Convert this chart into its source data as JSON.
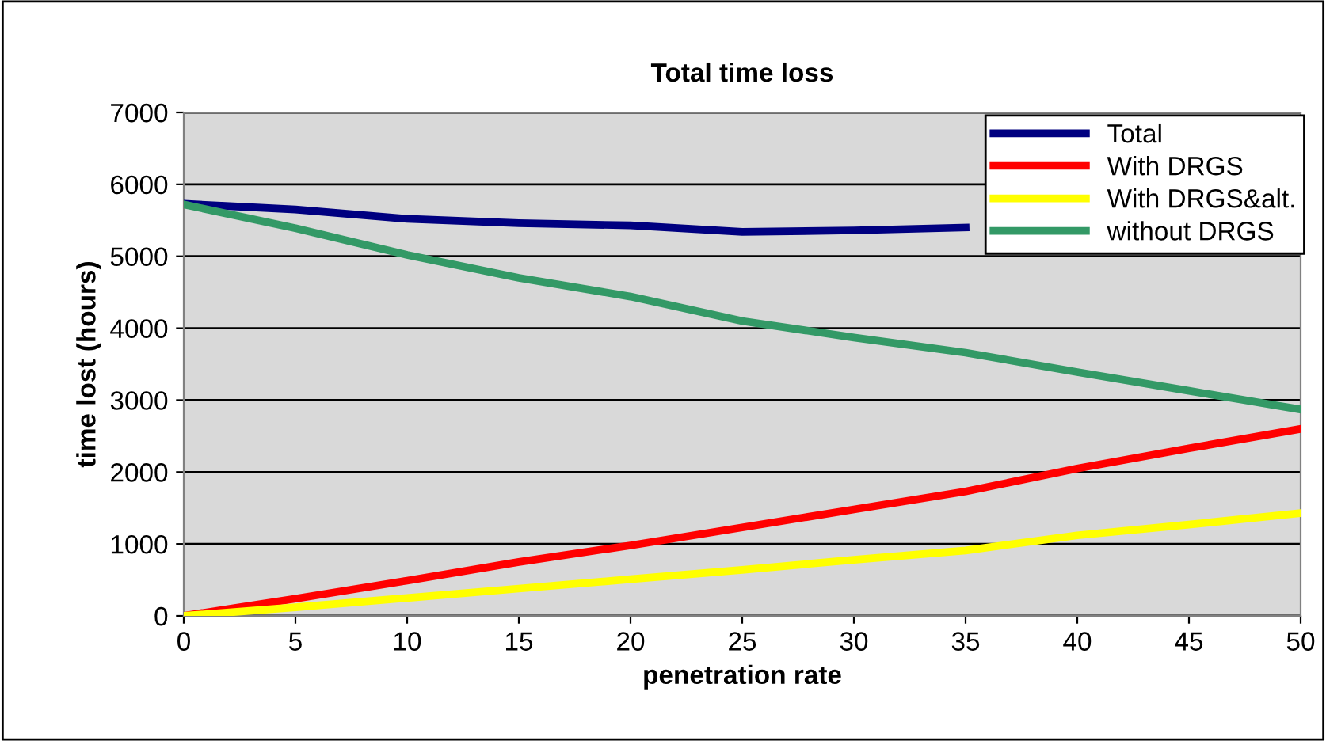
{
  "chart_data": {
    "type": "line",
    "title": "Total time loss",
    "xlabel": "penetration rate",
    "ylabel": "time lost (hours)",
    "x": [
      0,
      5,
      10,
      15,
      20,
      25,
      30,
      35,
      40,
      45,
      50
    ],
    "series": [
      {
        "name": "Total",
        "color": "#000080",
        "values": [
          5730,
          5650,
          5520,
          5460,
          5430,
          5340,
          5360,
          5400,
          null,
          null,
          null
        ]
      },
      {
        "name": "With DRGS",
        "color": "#ff0000",
        "values": [
          0,
          240,
          490,
          750,
          980,
          1230,
          1480,
          1730,
          2050,
          2330,
          2600
        ]
      },
      {
        "name": "With DRGS&alt.",
        "color": "#ffff00",
        "values": [
          0,
          120,
          250,
          380,
          510,
          640,
          780,
          910,
          1120,
          1270,
          1430
        ]
      },
      {
        "name": "without DRGS",
        "color": "#339966",
        "values": [
          5720,
          5390,
          5020,
          4700,
          4440,
          4100,
          3870,
          3660,
          3390,
          3130,
          2870
        ]
      }
    ],
    "xlim": [
      0,
      50
    ],
    "xticks": [
      0,
      5,
      10,
      15,
      20,
      25,
      30,
      35,
      40,
      45,
      50
    ],
    "ylim": [
      0,
      7000
    ],
    "yticks": [
      0,
      1000,
      2000,
      3000,
      4000,
      5000,
      6000,
      7000
    ],
    "grid": "y",
    "legend": "top right",
    "marker": "none",
    "line_style": "solid"
  }
}
